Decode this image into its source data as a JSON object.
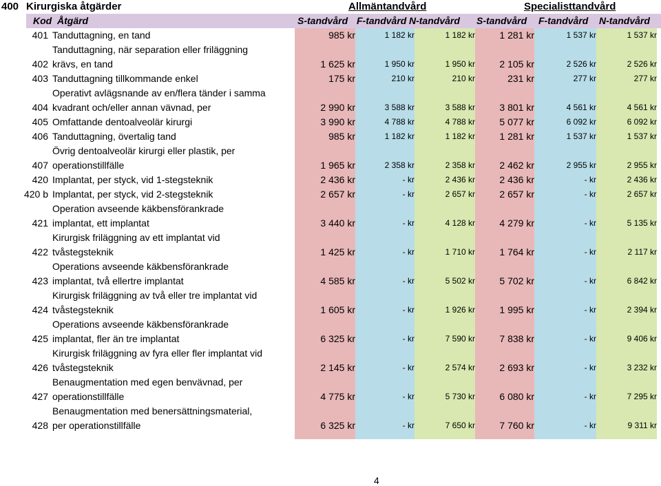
{
  "title": {
    "code": "400",
    "text": "Kirurgiska åtgärder"
  },
  "groups": [
    "Allmäntandvård",
    "Specialisttandvård"
  ],
  "headers": {
    "kod": "Kod",
    "atgard": "Åtgärd",
    "cols": [
      "S-tandvård",
      "F-tandvård",
      "N-tandvård",
      "S-tandvård",
      "F-tandvård",
      "N-tandvård"
    ]
  },
  "rows": [
    {
      "kod": "401",
      "lines": [
        "Tanduttagning, en tand"
      ],
      "prices": [
        "985 kr",
        "1 182 kr",
        "1 182 kr",
        "1 281 kr",
        "1 537 kr",
        "1 537 kr"
      ]
    },
    {
      "kod": "402",
      "lines": [
        "Tanduttagning, när separation eller friläggning",
        "krävs, en tand"
      ],
      "prices": [
        "1 625 kr",
        "1 950 kr",
        "1 950 kr",
        "2 105 kr",
        "2 526 kr",
        "2 526 kr"
      ]
    },
    {
      "kod": "403",
      "lines": [
        "Tanduttagning tillkommande enkel"
      ],
      "prices": [
        "175 kr",
        "210 kr",
        "210 kr",
        "231 kr",
        "277 kr",
        "277 kr"
      ]
    },
    {
      "kod": "404",
      "lines": [
        "Operativt avlägsnande av en/flera tänder i samma",
        "kvadrant och/eller annan vävnad, per"
      ],
      "prices": [
        "2 990 kr",
        "3 588 kr",
        "3 588 kr",
        "3 801 kr",
        "4 561 kr",
        "4 561 kr"
      ]
    },
    {
      "kod": "405",
      "lines": [
        "Omfattande dentoalveolär kirurgi"
      ],
      "prices": [
        "3 990 kr",
        "4 788 kr",
        "4 788 kr",
        "5 077 kr",
        "6 092 kr",
        "6 092 kr"
      ]
    },
    {
      "kod": "406",
      "lines": [
        "Tanduttagning, övertalig tand"
      ],
      "prices": [
        "985 kr",
        "1 182 kr",
        "1 182 kr",
        "1 281 kr",
        "1 537 kr",
        "1 537 kr"
      ]
    },
    {
      "kod": "407",
      "lines": [
        "Övrig dentoalveolär kirurgi eller plastik, per",
        "operationstillfälle"
      ],
      "prices": [
        "1 965 kr",
        "2 358 kr",
        "2 358 kr",
        "2 462 kr",
        "2 955 kr",
        "2 955 kr"
      ]
    },
    {
      "kod": "420",
      "lines": [
        "Implantat, per styck, vid 1-stegsteknik"
      ],
      "prices": [
        "2 436 kr",
        "- kr",
        "2 436 kr",
        "2 436 kr",
        "- kr",
        "2 436 kr"
      ]
    },
    {
      "kod": "420 b",
      "lines": [
        "Implantat, per styck, vid 2-stegsteknik"
      ],
      "prices": [
        "2 657 kr",
        "- kr",
        "2 657 kr",
        "2 657 kr",
        "- kr",
        "2 657 kr"
      ]
    },
    {
      "kod": "421",
      "lines": [
        "Operation avseende käkbensförankrade",
        "implantat, ett implantat"
      ],
      "prices": [
        "3 440 kr",
        "- kr",
        "4 128 kr",
        "4 279 kr",
        "- kr",
        "5 135 kr"
      ]
    },
    {
      "kod": "422",
      "lines": [
        "Kirurgisk friläggning av ett implantat vid",
        "tvåstegsteknik"
      ],
      "prices": [
        "1 425 kr",
        "- kr",
        "1 710 kr",
        "1 764 kr",
        "- kr",
        "2 117 kr"
      ]
    },
    {
      "kod": "423",
      "lines": [
        "Operations avseende käkbensförankrade",
        "implantat, två ellertre implantat"
      ],
      "prices": [
        "4 585 kr",
        "- kr",
        "5 502 kr",
        "5 702 kr",
        "- kr",
        "6 842 kr"
      ]
    },
    {
      "kod": "424",
      "lines": [
        "Kirurgisk friläggning av två eller tre implantat vid",
        "tvåstegsteknik"
      ],
      "prices": [
        "1 605 kr",
        "- kr",
        "1 926 kr",
        "1 995 kr",
        "- kr",
        "2 394 kr"
      ]
    },
    {
      "kod": "425",
      "lines": [
        "Operations avseende käkbensförankrade",
        "implantat, fler än tre implantat"
      ],
      "prices": [
        "6 325 kr",
        "- kr",
        "7 590 kr",
        "7 838 kr",
        "- kr",
        "9 406 kr"
      ]
    },
    {
      "kod": "426",
      "lines": [
        "Kirurgisk friläggning av fyra eller fler implantat vid",
        "tvåstegsteknik"
      ],
      "prices": [
        "2 145 kr",
        "- kr",
        "2 574 kr",
        "2 693 kr",
        "- kr",
        "3 232 kr"
      ]
    },
    {
      "kod": "427",
      "lines": [
        "Benaugmentation med egen benvävnad, per",
        "operationstillfälle"
      ],
      "prices": [
        "4 775 kr",
        "- kr",
        "5 730 kr",
        "6 080 kr",
        "- kr",
        "7 295 kr"
      ]
    },
    {
      "kod": "428",
      "lines": [
        "Benaugmentation med benersättningsmaterial,",
        "per operationstillfälle"
      ],
      "prices": [
        "6 325 kr",
        "- kr",
        "7 650 kr",
        "7 760 kr",
        "- kr",
        "9 311 kr"
      ]
    }
  ],
  "page_number": "4",
  "colors": {
    "header": "#d9c7e0",
    "pink": "#e8b8b9",
    "blue": "#b8dde8",
    "green": "#d8e8b0"
  }
}
